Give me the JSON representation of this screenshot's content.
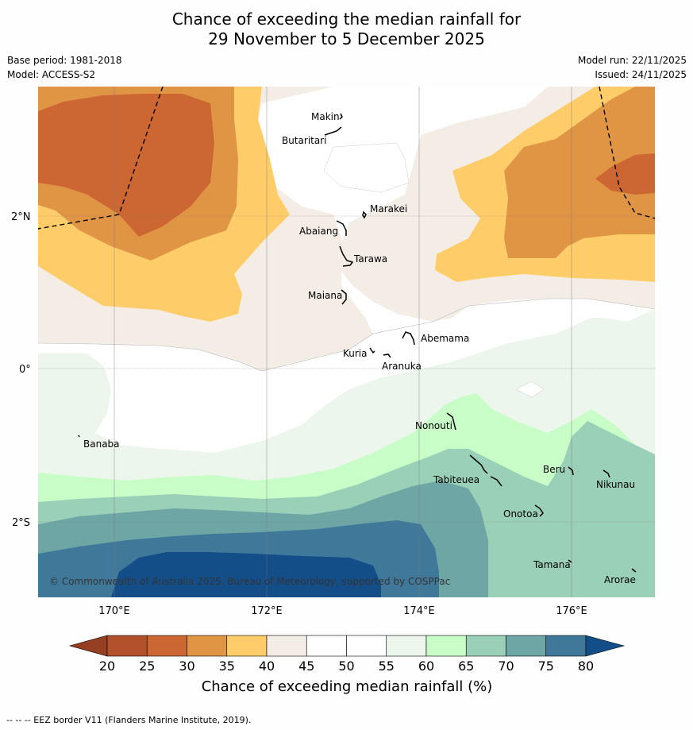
{
  "title": {
    "line1": "Chance of exceeding the median rainfall for",
    "line2": "29 November to 5 December 2025"
  },
  "meta": {
    "base_period": "Base period: 1981-2018",
    "model": "Model: ACCESS-S2",
    "model_run": "Model run: 22/11/2025",
    "issued": "Issued: 24/11/2025"
  },
  "axes": {
    "lon_labels": [
      "170°E",
      "172°E",
      "174°E",
      "176°E"
    ],
    "lat_labels": [
      "2°N",
      "0°",
      "2°S"
    ]
  },
  "places": [
    {
      "name": "Makin"
    },
    {
      "name": "Butaritari"
    },
    {
      "name": "Marakei"
    },
    {
      "name": "Abaiang"
    },
    {
      "name": "Tarawa"
    },
    {
      "name": "Maiana"
    },
    {
      "name": "Abemama"
    },
    {
      "name": "Kuria"
    },
    {
      "name": "Aranuka"
    },
    {
      "name": "Banaba"
    },
    {
      "name": "Nonouti"
    },
    {
      "name": "Beru"
    },
    {
      "name": "Tabiteuea"
    },
    {
      "name": "Nikunau"
    },
    {
      "name": "Onotoa"
    },
    {
      "name": "Tamana"
    },
    {
      "name": "Arorae"
    }
  ],
  "copyright": "© Commonwealth of Australia 2025, Bureau of Meteorology, supported by COSPPac",
  "colorbar": {
    "ticks": [
      "20",
      "25",
      "30",
      "35",
      "40",
      "45",
      "50",
      "55",
      "60",
      "65",
      "70",
      "75",
      "80"
    ],
    "colors": [
      "#b2502b",
      "#cc6633",
      "#e09545",
      "#fecd6a",
      "#f3ede6",
      "#ffffff",
      "#ffffff",
      "#ecf6ec",
      "#c8fdc8",
      "#9ad0b7",
      "#6ea6a6",
      "#40789a"
    ],
    "under_color": "#963f22",
    "over_color": "#144e88",
    "title": "Chance of exceeding median rainfall (%)"
  },
  "footer": "--  --  -- EEZ border V11 (Flanders Marine Institute, 2019)."
}
